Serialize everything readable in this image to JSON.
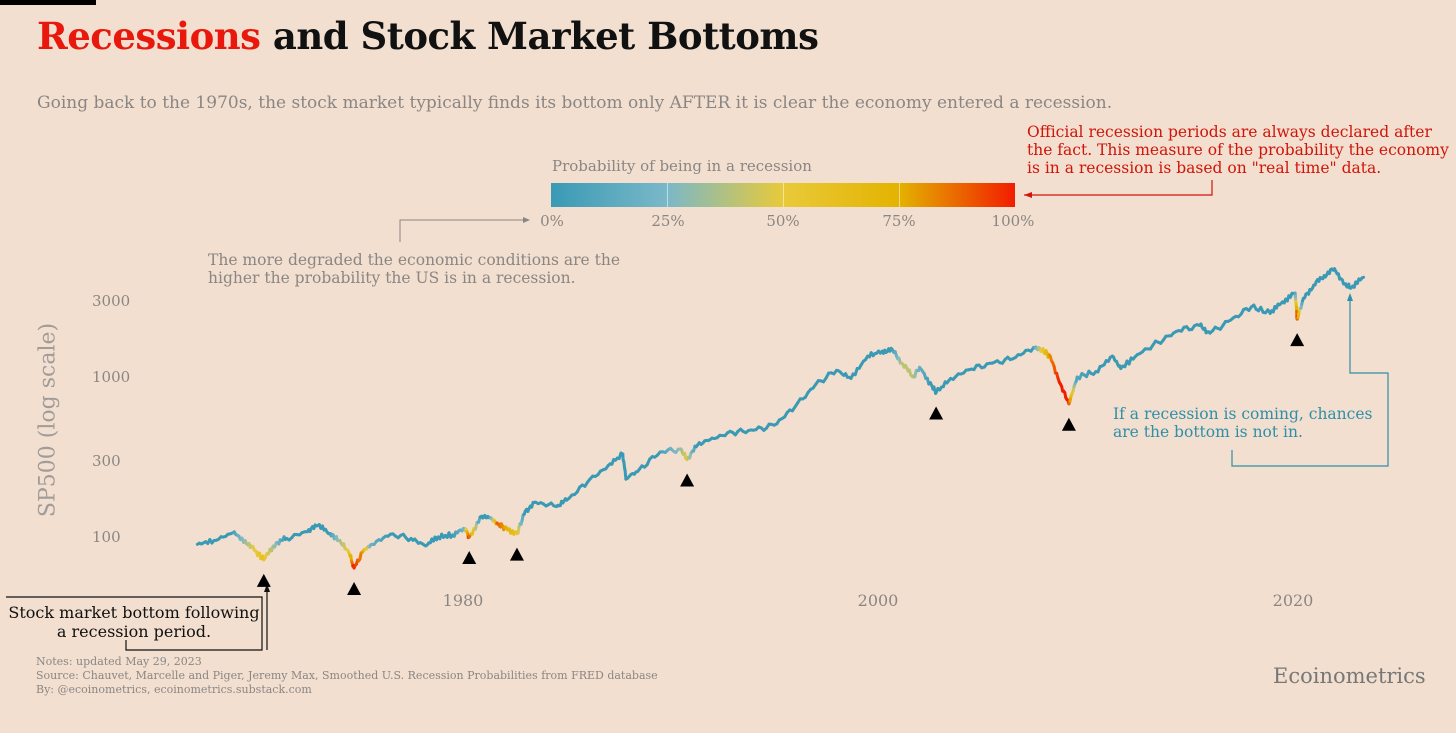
{
  "title": {
    "highlight": "Recessions",
    "rest": " and Stock Market Bottoms"
  },
  "subtitle": "Going back to the 1970s, the stock market typically finds its bottom only AFTER it is clear the economy entered a recession.",
  "legend": {
    "title": "Probability of being in a recession",
    "labels": [
      "0%",
      "25%",
      "50%",
      "75%",
      "100%"
    ],
    "colors": [
      "#3a9ab5",
      "#7ab8c8",
      "#e8ca3a",
      "#e3b300",
      "#f21d00"
    ]
  },
  "annotations": {
    "official": "Official recession periods are always declared after the fact. This measure of the probability the economy is in a recession is based on \"real time\" data.",
    "degraded": "The more degraded the economic conditions are the higher the probability the US is in a recession.",
    "coming": "If a recession is coming, chances are the bottom is not in.",
    "bottom": "Stock market bottom following a recession period."
  },
  "notes": [
    "Notes: updated May 29, 2023",
    "Source: Chauvet, Marcelle and Piger, Jeremy Max, Smoothed U.S. Recession Probabilities from FRED database",
    "By: @ecoinometrics, ecoinometrics.substack.com"
  ],
  "brand": "Ecoinometrics",
  "chart_data": {
    "type": "line",
    "title": "Recessions and Stock Market Bottoms",
    "ylabel": "SP500 (log scale)",
    "xlabel": "",
    "yscale": "log",
    "yticks": [
      100,
      300,
      1000,
      3000
    ],
    "ytick_labels": [
      "100",
      "300",
      "1000",
      "3000"
    ],
    "xticks": [
      1980,
      2000,
      2020
    ],
    "xtick_labels": [
      "1980",
      "2000",
      "2020"
    ],
    "xlim": [
      1967,
      2024
    ],
    "series": [
      {
        "name": "SP500 colored by recession probability",
        "points": [
          [
            1967.2,
            90,
            0
          ],
          [
            1968.0,
            95,
            0
          ],
          [
            1968.9,
            106,
            0
          ],
          [
            1969.5,
            95,
            0.3
          ],
          [
            1970.0,
            82,
            0.5
          ],
          [
            1970.4,
            72,
            0.6
          ],
          [
            1971.0,
            92,
            0.3
          ],
          [
            1971.5,
            98,
            0
          ],
          [
            1972.5,
            108,
            0
          ],
          [
            1973.0,
            118,
            0
          ],
          [
            1973.6,
            105,
            0
          ],
          [
            1974.0,
            95,
            0.3
          ],
          [
            1974.5,
            80,
            0.5
          ],
          [
            1974.75,
            64,
            1.0
          ],
          [
            1975.2,
            82,
            0.8
          ],
          [
            1975.6,
            90,
            0.2
          ],
          [
            1976.5,
            104,
            0
          ],
          [
            1977.5,
            98,
            0
          ],
          [
            1978.2,
            88,
            0
          ],
          [
            1978.8,
            100,
            0
          ],
          [
            1979.5,
            103,
            0
          ],
          [
            1980.1,
            112,
            0.2
          ],
          [
            1980.3,
            100,
            1.0
          ],
          [
            1980.9,
            135,
            0
          ],
          [
            1981.3,
            132,
            0
          ],
          [
            1981.7,
            120,
            0.9
          ],
          [
            1982.0,
            115,
            0.8
          ],
          [
            1982.6,
            105,
            0.6
          ],
          [
            1983.0,
            145,
            0
          ],
          [
            1983.5,
            165,
            0
          ],
          [
            1984.5,
            155,
            0
          ],
          [
            1985.0,
            170,
            0
          ],
          [
            1986.0,
            220,
            0
          ],
          [
            1987.0,
            280,
            0
          ],
          [
            1987.7,
            330,
            0
          ],
          [
            1987.85,
            230,
            0
          ],
          [
            1988.5,
            265,
            0
          ],
          [
            1989.5,
            340,
            0
          ],
          [
            1990.5,
            355,
            0.3
          ],
          [
            1990.8,
            305,
            0.5
          ],
          [
            1991.3,
            375,
            0
          ],
          [
            1992.0,
            415,
            0
          ],
          [
            1993.0,
            450,
            0
          ],
          [
            1994.0,
            465,
            0
          ],
          [
            1995.0,
            500,
            0
          ],
          [
            1996.0,
            650,
            0
          ],
          [
            1997.0,
            900,
            0
          ],
          [
            1998.0,
            1100,
            0
          ],
          [
            1998.7,
            980,
            0
          ],
          [
            1999.5,
            1350,
            0
          ],
          [
            2000.2,
            1450,
            0
          ],
          [
            2000.7,
            1480,
            0
          ],
          [
            2001.2,
            1200,
            0.4
          ],
          [
            2001.7,
            1000,
            0.4
          ],
          [
            2002.0,
            1150,
            0.2
          ],
          [
            2002.6,
            880,
            0
          ],
          [
            2002.8,
            800,
            0
          ],
          [
            2003.5,
            980,
            0
          ],
          [
            2004.5,
            1120,
            0
          ],
          [
            2005.5,
            1220,
            0
          ],
          [
            2006.5,
            1300,
            0
          ],
          [
            2007.5,
            1530,
            0
          ],
          [
            2007.9,
            1480,
            0.5
          ],
          [
            2008.3,
            1350,
            0.8
          ],
          [
            2008.8,
            900,
            1.0
          ],
          [
            2009.2,
            680,
            1.0
          ],
          [
            2009.6,
            1000,
            0.1
          ],
          [
            2010.5,
            1080,
            0
          ],
          [
            2011.3,
            1350,
            0
          ],
          [
            2011.7,
            1130,
            0
          ],
          [
            2012.5,
            1380,
            0
          ],
          [
            2013.5,
            1650,
            0
          ],
          [
            2014.5,
            1950,
            0
          ],
          [
            2015.5,
            2100,
            0
          ],
          [
            2016.0,
            1880,
            0
          ],
          [
            2017.0,
            2270,
            0
          ],
          [
            2018.0,
            2750,
            0
          ],
          [
            2018.9,
            2500,
            0
          ],
          [
            2019.5,
            2950,
            0
          ],
          [
            2020.1,
            3350,
            0
          ],
          [
            2020.2,
            2300,
            1.0
          ],
          [
            2020.5,
            3100,
            0
          ],
          [
            2021.0,
            3750,
            0
          ],
          [
            2021.5,
            4300,
            0
          ],
          [
            2022.0,
            4750,
            0
          ],
          [
            2022.5,
            3800,
            0
          ],
          [
            2022.8,
            3600,
            0
          ],
          [
            2023.4,
            4200,
            0
          ]
        ]
      }
    ],
    "market_bottoms": [
      [
        1970.4,
        72
      ],
      [
        1974.75,
        64
      ],
      [
        1980.3,
        100
      ],
      [
        1982.6,
        105
      ],
      [
        1990.8,
        305
      ],
      [
        2002.8,
        800
      ],
      [
        2009.2,
        680
      ],
      [
        2020.2,
        2300
      ]
    ]
  }
}
